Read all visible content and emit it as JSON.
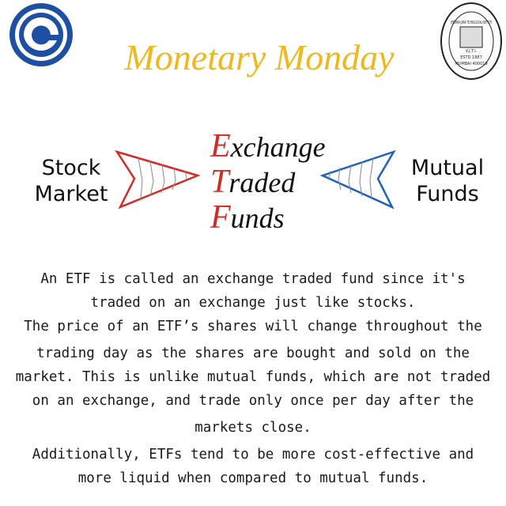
{
  "title": "Monetary Monday",
  "right_logo": {
    "ring": "VEERMATA JIJABAI TECHNOLOGICAL INSTITUTE",
    "initials": "V.J.T.I.",
    "established": "ESTD 1887",
    "city": "MUMBAI 400019"
  },
  "left_label": [
    "Stock",
    "Market"
  ],
  "right_label": [
    "Mutual",
    "Funds"
  ],
  "center_words": [
    {
      "initial": "E",
      "rest": "xchange"
    },
    {
      "initial": "T",
      "rest": "raded"
    },
    {
      "initial": "F",
      "rest": "unds"
    }
  ],
  "body_lines": [
    "An ETF is called an exchange traded fund since it's",
    "traded on an exchange just like stocks.",
    "The price of an ETF’s shares will change throughout the",
    "trading day as the shares are bought and sold on the",
    "market. This is unlike mutual funds, which are not traded",
    "on an exchange, and trade only once per day after the",
    "markets close.",
    "Additionally, ETFs tend to be more cost-effective and",
    "more liquid when compared to mutual funds."
  ]
}
